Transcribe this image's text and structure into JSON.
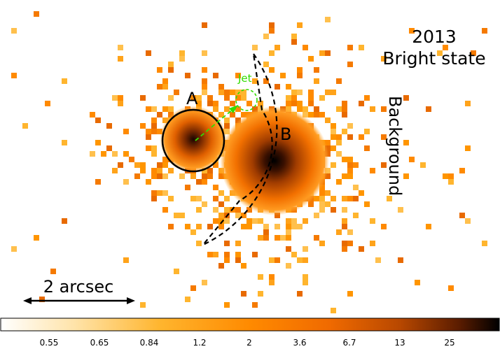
{
  "figure": {
    "title_year": "2013",
    "title_state": "Bright state",
    "label_a": "A",
    "label_b": "B",
    "label_jet": "Jet",
    "label_background": "Background",
    "scale_bar_label": "2 arcsec"
  },
  "colorbar": {
    "ticks": [
      "0.55",
      "0.65",
      "0.84",
      "1.2",
      "2",
      "3.6",
      "6.7",
      "13",
      "25"
    ]
  },
  "colors": {
    "low": "#ffffff",
    "mid_low": "#ffd27a",
    "mid": "#ff8c00",
    "mid_high": "#cc4a00",
    "high": "#000000",
    "jet": "#33dd00"
  }
}
